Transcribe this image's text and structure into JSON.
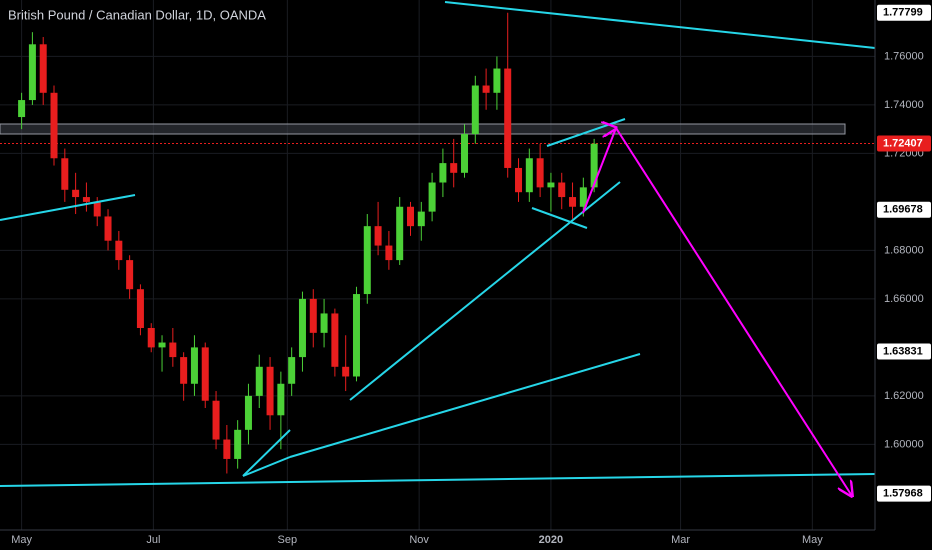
{
  "chart_data": {
    "type": "candlestick",
    "title": "British Pound / Canadian Dollar, 1D, OANDA",
    "up_color": "#4cd137",
    "down_color": "#e81e1e",
    "xlim": [
      -10,
      395
    ],
    "ylim": [
      1.56469,
      1.78327
    ],
    "xticks": [
      {
        "value": 0,
        "label": "May"
      },
      {
        "value": 61,
        "label": "Jul"
      },
      {
        "value": 123,
        "label": "Sep"
      },
      {
        "value": 184,
        "label": "Nov"
      },
      {
        "value": 245,
        "label": "2020"
      },
      {
        "value": 305,
        "label": "Mar"
      },
      {
        "value": 366,
        "label": "May"
      }
    ],
    "yticks": [
      {
        "value": 1.76,
        "label": "1.76000"
      },
      {
        "value": 1.74,
        "label": "1.74000"
      },
      {
        "value": 1.72,
        "label": "1.72000"
      },
      {
        "value": 1.68,
        "label": "1.68000"
      },
      {
        "value": 1.66,
        "label": "1.66000"
      },
      {
        "value": 1.62,
        "label": "1.62000"
      },
      {
        "value": 1.6,
        "label": "1.60000"
      }
    ],
    "price_labels": [
      {
        "value": 1.77799,
        "label": "1.77799",
        "color": "#ffffff"
      },
      {
        "value": 1.72407,
        "label": "1.72407",
        "color": "#e81e1e"
      },
      {
        "value": 1.69678,
        "label": "1.69678",
        "color": "#ffffff"
      },
      {
        "value": 1.63831,
        "label": "1.63831",
        "color": "#ffffff"
      },
      {
        "value": 1.57968,
        "label": "1.57968",
        "color": "#ffffff"
      }
    ],
    "candles": [
      [
        0,
        1.735,
        1.745,
        1.73,
        1.742
      ],
      [
        5,
        1.742,
        1.77,
        1.74,
        1.765
      ],
      [
        10,
        1.765,
        1.768,
        1.74,
        1.745
      ],
      [
        15,
        1.745,
        1.748,
        1.715,
        1.718
      ],
      [
        20,
        1.718,
        1.722,
        1.7,
        1.705
      ],
      [
        25,
        1.705,
        1.712,
        1.695,
        1.702
      ],
      [
        30,
        1.702,
        1.708,
        1.696,
        1.7
      ],
      [
        35,
        1.7,
        1.702,
        1.69,
        1.694
      ],
      [
        40,
        1.694,
        1.697,
        1.68,
        1.684
      ],
      [
        45,
        1.684,
        1.688,
        1.672,
        1.676
      ],
      [
        50,
        1.676,
        1.678,
        1.66,
        1.664
      ],
      [
        55,
        1.664,
        1.666,
        1.645,
        1.648
      ],
      [
        60,
        1.648,
        1.65,
        1.638,
        1.64
      ],
      [
        65,
        1.64,
        1.645,
        1.63,
        1.642
      ],
      [
        70,
        1.642,
        1.648,
        1.632,
        1.636
      ],
      [
        75,
        1.636,
        1.638,
        1.618,
        1.625
      ],
      [
        80,
        1.625,
        1.645,
        1.62,
        1.64
      ],
      [
        85,
        1.64,
        1.642,
        1.615,
        1.618
      ],
      [
        90,
        1.618,
        1.622,
        1.598,
        1.602
      ],
      [
        95,
        1.602,
        1.608,
        1.588,
        1.594
      ],
      [
        100,
        1.594,
        1.61,
        1.59,
        1.606
      ],
      [
        105,
        1.606,
        1.625,
        1.6,
        1.62
      ],
      [
        110,
        1.62,
        1.637,
        1.615,
        1.632
      ],
      [
        115,
        1.632,
        1.636,
        1.606,
        1.612
      ],
      [
        120,
        1.612,
        1.63,
        1.598,
        1.625
      ],
      [
        125,
        1.625,
        1.64,
        1.62,
        1.636
      ],
      [
        130,
        1.636,
        1.663,
        1.63,
        1.66
      ],
      [
        135,
        1.66,
        1.664,
        1.64,
        1.646
      ],
      [
        140,
        1.646,
        1.66,
        1.64,
        1.654
      ],
      [
        145,
        1.654,
        1.656,
        1.628,
        1.632
      ],
      [
        150,
        1.632,
        1.645,
        1.622,
        1.628
      ],
      [
        155,
        1.628,
        1.665,
        1.626,
        1.662
      ],
      [
        160,
        1.662,
        1.695,
        1.658,
        1.69
      ],
      [
        165,
        1.69,
        1.7,
        1.678,
        1.682
      ],
      [
        170,
        1.682,
        1.688,
        1.672,
        1.676
      ],
      [
        175,
        1.676,
        1.702,
        1.674,
        1.698
      ],
      [
        180,
        1.698,
        1.7,
        1.686,
        1.69
      ],
      [
        185,
        1.69,
        1.7,
        1.684,
        1.696
      ],
      [
        190,
        1.696,
        1.712,
        1.692,
        1.708
      ],
      [
        195,
        1.708,
        1.722,
        1.702,
        1.716
      ],
      [
        200,
        1.716,
        1.726,
        1.706,
        1.712
      ],
      [
        205,
        1.712,
        1.732,
        1.71,
        1.728
      ],
      [
        210,
        1.728,
        1.752,
        1.724,
        1.748
      ],
      [
        215,
        1.748,
        1.755,
        1.738,
        1.745
      ],
      [
        220,
        1.745,
        1.76,
        1.738,
        1.755
      ],
      [
        225,
        1.755,
        1.778,
        1.71,
        1.714
      ],
      [
        230,
        1.714,
        1.718,
        1.7,
        1.704
      ],
      [
        235,
        1.704,
        1.722,
        1.7,
        1.718
      ],
      [
        240,
        1.718,
        1.724,
        1.702,
        1.706
      ],
      [
        245,
        1.706,
        1.712,
        1.696,
        1.708
      ],
      [
        250,
        1.708,
        1.712,
        1.697,
        1.702
      ],
      [
        255,
        1.702,
        1.708,
        1.693,
        1.698
      ],
      [
        260,
        1.698,
        1.71,
        1.694,
        1.706
      ],
      [
        265,
        1.706,
        1.726,
        1.704,
        1.724
      ]
    ]
  }
}
